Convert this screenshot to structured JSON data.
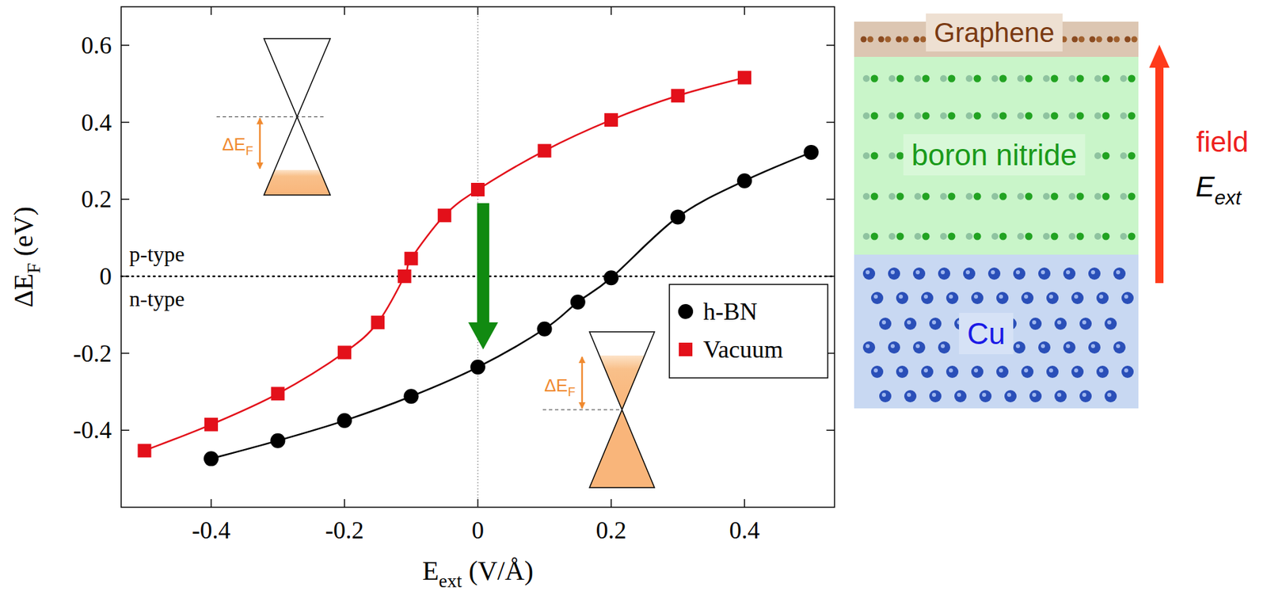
{
  "chart_data": {
    "type": "line",
    "x_label": {
      "text": "E",
      "sub": "ext",
      "suffix": " (V/Å)"
    },
    "y_label": {
      "text": "ΔE",
      "sub": "F",
      "suffix": " (eV)"
    },
    "xlim": [
      -0.535,
      0.535
    ],
    "ylim": [
      -0.6,
      0.7
    ],
    "xticks": [
      -0.4,
      -0.2,
      0,
      0.2,
      0.4
    ],
    "yticks": [
      -0.4,
      -0.2,
      0,
      0.2,
      0.4,
      0.6
    ],
    "legend": "right",
    "reference_lines": {
      "x": 0,
      "y": 0
    },
    "series": [
      {
        "name": "h-BN",
        "color": "#000000",
        "marker": "circle",
        "line_style": "solid",
        "x": [
          -0.4,
          -0.3,
          -0.2,
          -0.1,
          0,
          0.1,
          0.15,
          0.2,
          0.3,
          0.4,
          0.5
        ],
        "values": [
          -0.474,
          -0.427,
          -0.375,
          -0.312,
          -0.236,
          -0.137,
          -0.067,
          -0.004,
          0.154,
          0.248,
          0.322
        ]
      },
      {
        "name": "Vacuum",
        "color": "#e3101a",
        "marker": "square",
        "line_style": "solid",
        "x": [
          -0.5,
          -0.4,
          -0.3,
          -0.2,
          -0.15,
          -0.11,
          -0.1,
          -0.05,
          0,
          0.1,
          0.2,
          0.3,
          0.4
        ],
        "values": [
          -0.453,
          -0.385,
          -0.305,
          -0.198,
          -0.12,
          0.0,
          0.046,
          0.158,
          0.225,
          0.326,
          0.406,
          0.469,
          0.516
        ]
      }
    ],
    "annotations": {
      "p_type": "p-type",
      "n_type": "n-type",
      "inset_top": {
        "text": "ΔE",
        "sub": "F"
      },
      "inset_bottom": {
        "text": "ΔE",
        "sub": "F"
      }
    },
    "arrow": {
      "x": 0.008,
      "from": 0.19,
      "to": -0.19
    }
  },
  "diagram": {
    "layers": [
      "Graphene",
      "boron nitride",
      "Cu"
    ],
    "field_label": "field",
    "field_symbol": {
      "text": "E",
      "sub": "ext"
    }
  }
}
